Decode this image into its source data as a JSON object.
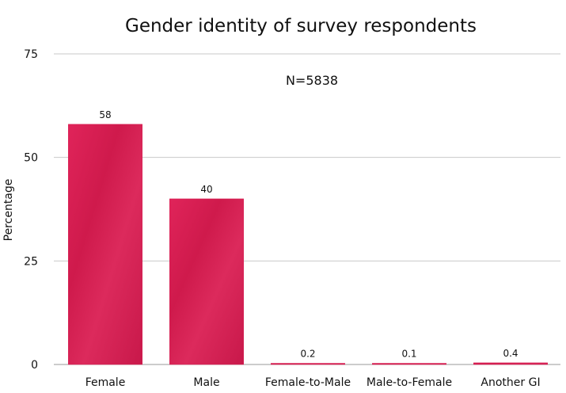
{
  "chart_data": {
    "type": "bar",
    "title": "Gender identity of survey respondents",
    "annotation": "N=5838",
    "ylabel": "Percentage",
    "xlabel": "",
    "ylim": [
      0,
      75
    ],
    "yticks": [
      0,
      25,
      50,
      75
    ],
    "grid": true,
    "categories": [
      "Female",
      "Male",
      "Female-to-Male",
      "Male-to-Female",
      "Another GI"
    ],
    "values": [
      58,
      40,
      0.2,
      0.1,
      0.4
    ],
    "data_labels": [
      "58",
      "40",
      "0.2",
      "0.1",
      "0.4"
    ],
    "bar_color": "#d81e52"
  }
}
